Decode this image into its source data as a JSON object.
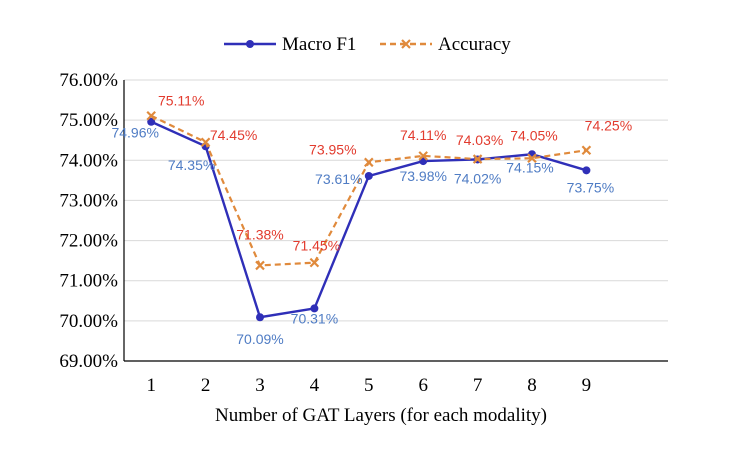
{
  "chart_data": {
    "type": "line",
    "title": "",
    "xlabel": "Number of GAT Layers (for each modality)",
    "ylabel": "",
    "x": [
      1,
      2,
      3,
      4,
      5,
      6,
      7,
      8,
      9
    ],
    "x_tick_labels": [
      "1",
      "2",
      "3",
      "4",
      "5",
      "6",
      "7",
      "8",
      "9"
    ],
    "xlim": [
      0.5,
      10.5
    ],
    "ylim": [
      69.0,
      76.0
    ],
    "y_tick_values": [
      69,
      70,
      71,
      72,
      73,
      74,
      75,
      76
    ],
    "y_tick_labels": [
      "69.00%",
      "70.00%",
      "71.00%",
      "72.00%",
      "73.00%",
      "74.00%",
      "75.00%",
      "76.00%"
    ],
    "grid": true,
    "legend_position": "top-center",
    "series": [
      {
        "name": "Macro F1",
        "color": "#2f2fb8",
        "label_color": "#4f7cc4",
        "line_style": "solid",
        "marker": "circle",
        "values": [
          74.96,
          74.35,
          70.09,
          70.31,
          73.61,
          73.98,
          74.02,
          74.15,
          73.75
        ],
        "data_labels": [
          "74.96%",
          "74.35%",
          "70.09%",
          "70.31%",
          "73.61%",
          "73.98%",
          "74.02%",
          "74.15%",
          "73.75%"
        ]
      },
      {
        "name": "Accuracy",
        "color": "#e08a3c",
        "label_color": "#e23b2e",
        "line_style": "dashed",
        "marker": "x",
        "values": [
          75.11,
          74.45,
          71.38,
          71.45,
          73.95,
          74.11,
          74.03,
          74.05,
          74.25
        ],
        "data_labels": [
          "75.11%",
          "74.45%",
          "71.38%",
          "71.45%",
          "73.95%",
          "74.11%",
          "74.03%",
          "74.05%",
          "74.25%"
        ]
      }
    ]
  }
}
